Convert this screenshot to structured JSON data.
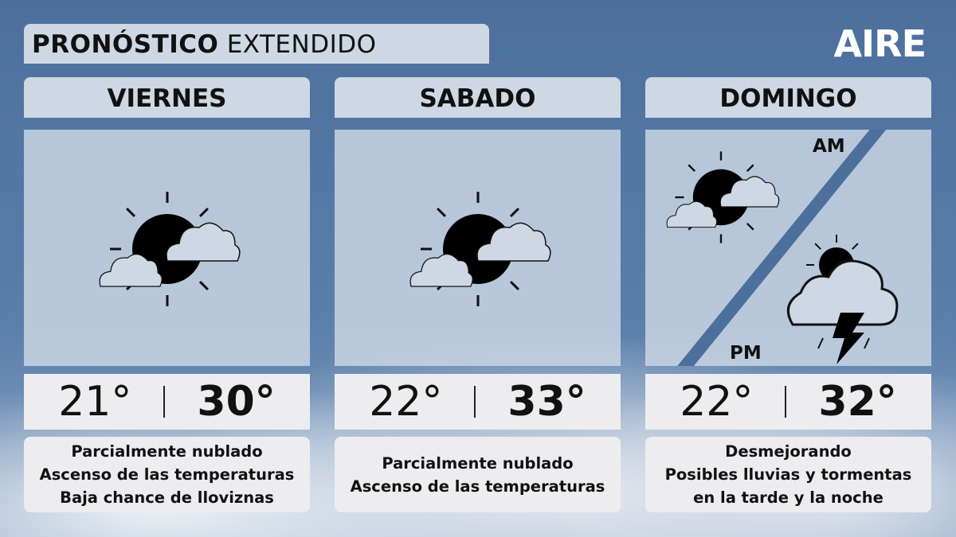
{
  "title": {
    "bold": "PRONÓSTICO",
    "regular": "EXTENDIDO"
  },
  "logo": "AIRE",
  "days": [
    {
      "name": "VIERNES",
      "icon": "partly-cloudy-icon",
      "min": "21°",
      "max": "30°",
      "desc": [
        "Parcialmente nublado",
        "Ascenso de las temperaturas",
        "Baja chance de lloviznas"
      ]
    },
    {
      "name": "SABADO",
      "icon": "partly-cloudy-icon",
      "min": "22°",
      "max": "33°",
      "desc": [
        "Parcialmente nublado",
        "Ascenso de las temperaturas"
      ]
    },
    {
      "name": "DOMINGO",
      "icon_am": "partly-cloudy-icon",
      "icon_pm": "thunderstorm-icon",
      "am": "AM",
      "pm": "PM",
      "min": "22°",
      "max": "32°",
      "desc": [
        "Desmejorando",
        "Posibles lluvias y tormentas",
        "en la tarde y la noche"
      ]
    }
  ],
  "colors": {
    "background": "#4c6f9c",
    "panel": "#cdd8e4",
    "text": "#111111"
  }
}
